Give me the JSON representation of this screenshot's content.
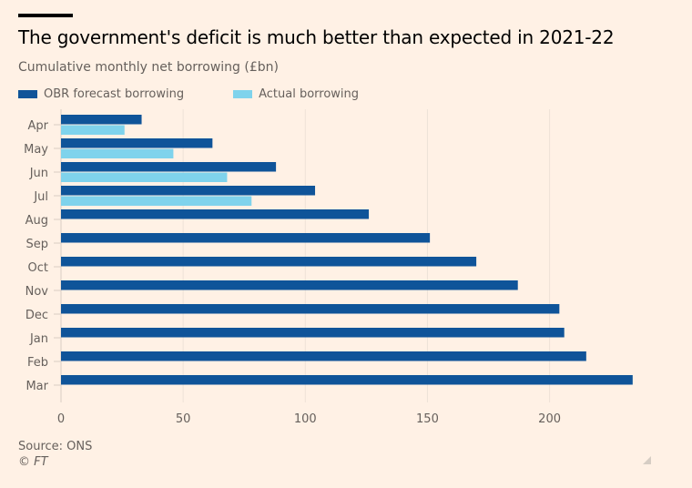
{
  "header": {
    "title": "The government's deficit is much better than expected in 2021-22",
    "subtitle": "Cumulative monthly net borrowing (£bn)"
  },
  "legend": [
    {
      "label": "OBR forecast borrowing",
      "color": "#0f5499"
    },
    {
      "label": "Actual borrowing",
      "color": "#7fd3ec"
    }
  ],
  "footer": {
    "source": "Source: ONS",
    "copyright": "© FT"
  },
  "chart_data": {
    "type": "bar",
    "orientation": "horizontal",
    "title": "The government's deficit is much better than expected in 2021-22",
    "subtitle": "Cumulative monthly net borrowing (£bn)",
    "categories": [
      "Apr",
      "May",
      "Jun",
      "Jul",
      "Aug",
      "Sep",
      "Oct",
      "Nov",
      "Dec",
      "Jan",
      "Feb",
      "Mar"
    ],
    "series": [
      {
        "name": "OBR forecast borrowing",
        "color": "#0f5499",
        "values": [
          33,
          62,
          88,
          104,
          126,
          151,
          170,
          187,
          204,
          206,
          215,
          234
        ]
      },
      {
        "name": "Actual borrowing",
        "color": "#7fd3ec",
        "values": [
          26,
          46,
          68,
          78,
          null,
          null,
          null,
          null,
          null,
          null,
          null,
          null
        ]
      }
    ],
    "xlabel": "",
    "ylabel": "",
    "xlim": [
      0,
      240
    ],
    "xticks": [
      0,
      50,
      100,
      150,
      200
    ],
    "grid": true,
    "legend_position": "top-left"
  }
}
